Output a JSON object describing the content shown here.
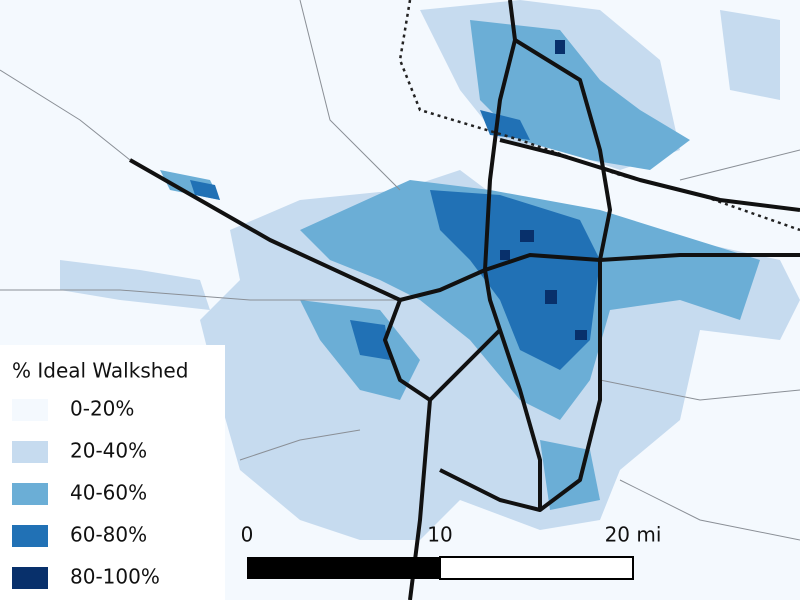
{
  "legend": {
    "title": "% Ideal Walkshed",
    "items": [
      {
        "label": "0-20%",
        "color": "#f4f9fe"
      },
      {
        "label": "20-40%",
        "color": "#c6dbef"
      },
      {
        "label": "40-60%",
        "color": "#6baed6"
      },
      {
        "label": "60-80%",
        "color": "#2171b5"
      },
      {
        "label": "80-100%",
        "color": "#08306b"
      }
    ]
  },
  "scale_bar": {
    "labels": [
      "0",
      "10",
      "20 mi"
    ]
  }
}
